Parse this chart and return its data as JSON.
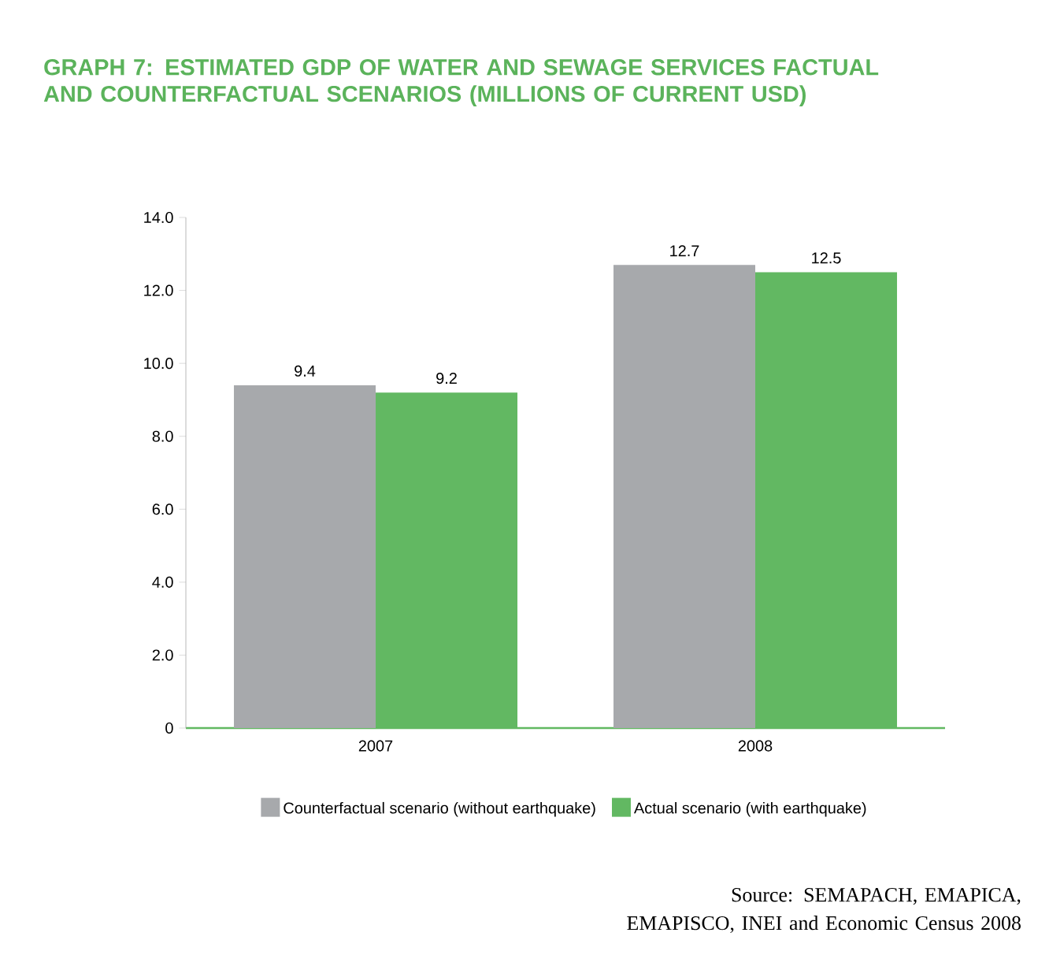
{
  "chart_data": {
    "type": "bar",
    "title": "GRAPH 7: ESTIMATED GDP OF WATER AND SEWAGE SERVICES FACTUAL AND COUNTERFACTUAL SCENARIOS (MILLIONS OF CURRENT USD)",
    "categories": [
      "2007",
      "2008"
    ],
    "series": [
      {
        "name": "Counterfactual scenario (without earthquake)",
        "color": "#a7a9ac",
        "values": [
          9.4,
          12.7
        ]
      },
      {
        "name": "Actual scenario (with earthquake)",
        "color": "#62b862",
        "values": [
          9.2,
          12.5
        ]
      }
    ],
    "ylim": [
      0,
      14
    ],
    "yticks": [
      0,
      {
        "value": 2,
        "label": "2.0"
      },
      {
        "value": 4,
        "label": "4.0"
      },
      {
        "value": 6,
        "label": "6.0"
      },
      {
        "value": 8,
        "label": "8.0"
      },
      {
        "value": 10,
        "label": "10.0"
      },
      {
        "value": 12,
        "label": "12.0"
      },
      {
        "value": 14,
        "label": "14.0"
      }
    ],
    "data_labels": true,
    "legend": "bottom",
    "annotations": [
      "Source: SEMAPACH, EMAPICA, EMAPISCO, INEI and Economic Census 2008"
    ]
  }
}
